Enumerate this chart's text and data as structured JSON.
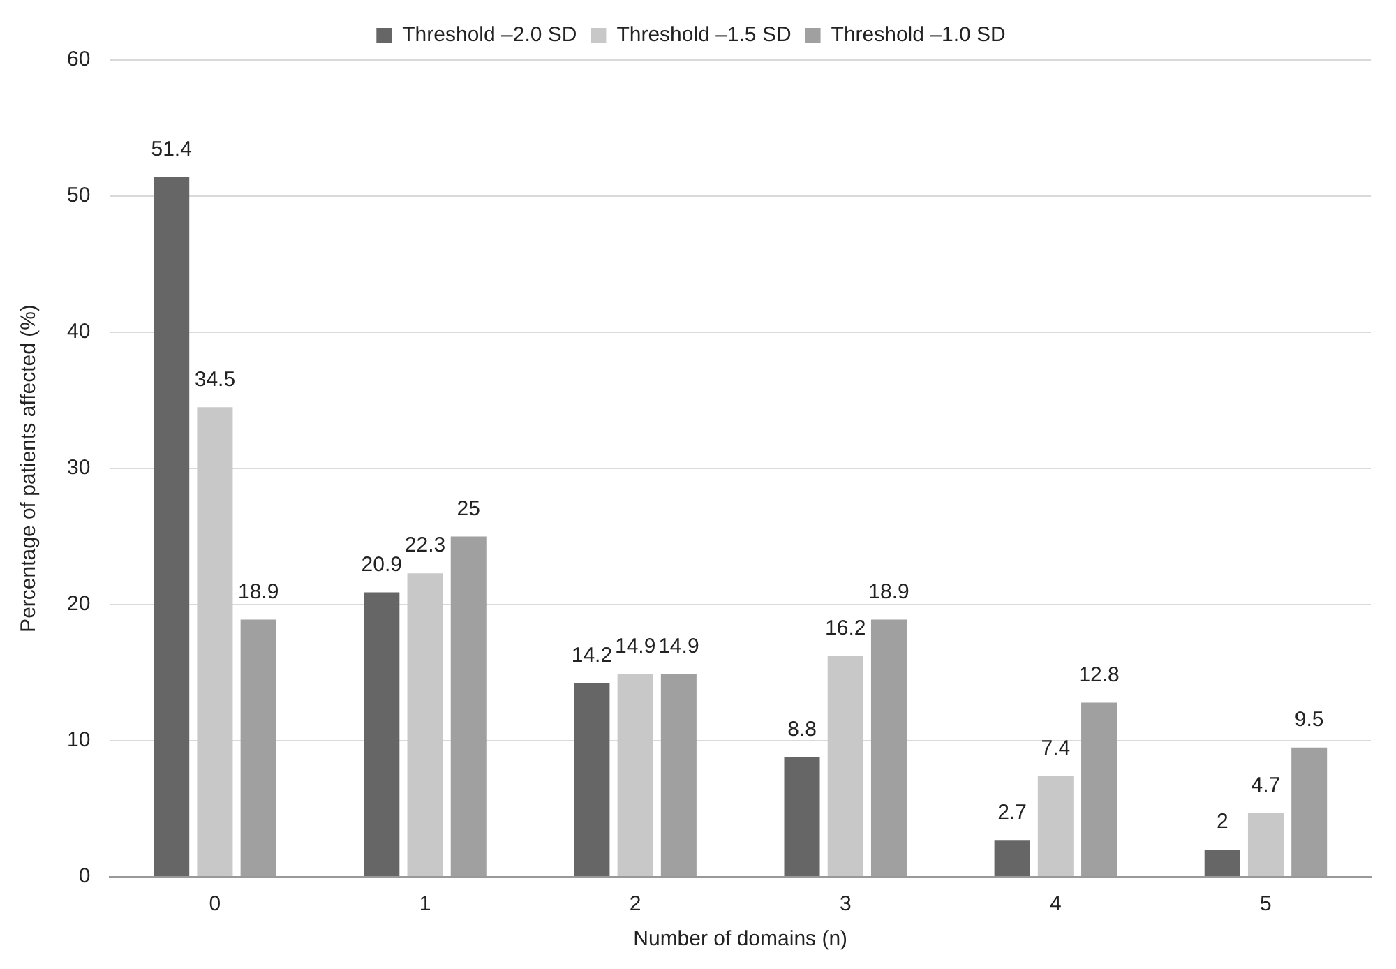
{
  "chart_data": {
    "type": "bar",
    "xlabel": "Number of domains (n)",
    "ylabel": "Percentage of patients affected (%)",
    "categories": [
      "0",
      "1",
      "2",
      "3",
      "4",
      "5"
    ],
    "series": [
      {
        "name": "Threshold –2.0 SD",
        "color": "#666666",
        "values": [
          51.4,
          20.9,
          14.2,
          8.8,
          2.7,
          2
        ]
      },
      {
        "name": "Threshold –1.5 SD",
        "color": "#c8c8c8",
        "values": [
          34.5,
          22.3,
          14.9,
          16.2,
          7.4,
          4.7
        ]
      },
      {
        "name": "Threshold –1.0 SD",
        "color": "#a0a0a0",
        "values": [
          18.9,
          25,
          14.9,
          18.9,
          12.8,
          9.5
        ]
      }
    ],
    "ylim": [
      0,
      60
    ],
    "yticks": [
      0,
      10,
      20,
      30,
      40,
      50,
      60
    ],
    "grid": "y",
    "legend": "top",
    "data_labels": true
  }
}
